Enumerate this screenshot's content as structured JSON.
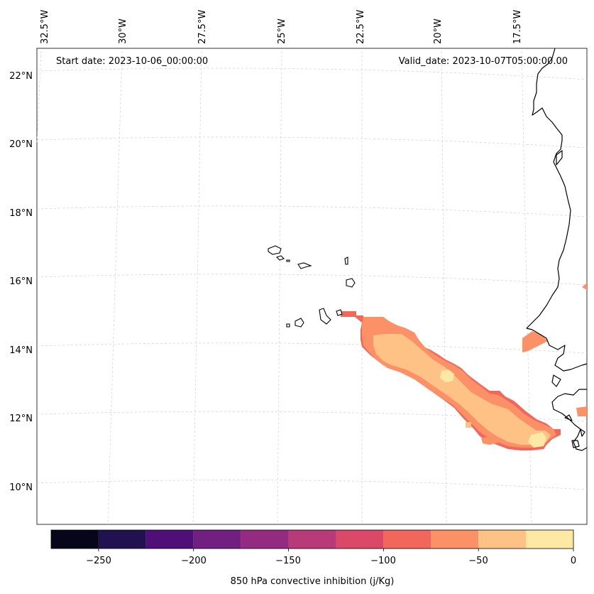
{
  "map": {
    "start_date": "Start date: 2023-10-06_00:00:00",
    "valid_date": "Valid_date: 2023-10-07T05:00:00.00",
    "lon_labels": [
      "32.5°W",
      "30°W",
      "27.5°W",
      "25°W",
      "22.5°W",
      "20°W",
      "17.5°W"
    ],
    "lat_labels": [
      "22°N",
      "20°N",
      "18°N",
      "16°N",
      "14°N",
      "12°N",
      "10°N"
    ],
    "colors": {
      "land_outline": "#000000",
      "grid": "#cfcfcf"
    }
  },
  "colorbar": {
    "label": "850 hPa convective inhibition (j/Kg)",
    "tick_labels": [
      "−250",
      "−200",
      "−150",
      "−100",
      "−50",
      "0"
    ],
    "bins": [
      -275,
      -250,
      -225,
      -200,
      -175,
      -150,
      -125,
      -100,
      -75,
      -50,
      -25,
      0
    ],
    "colors": [
      "#06051a",
      "#221150",
      "#4f0e78",
      "#731f81",
      "#952b80",
      "#b93a78",
      "#dc4867",
      "#f2665c",
      "#fc9066",
      "#fec287",
      "#fde8a5"
    ]
  }
}
